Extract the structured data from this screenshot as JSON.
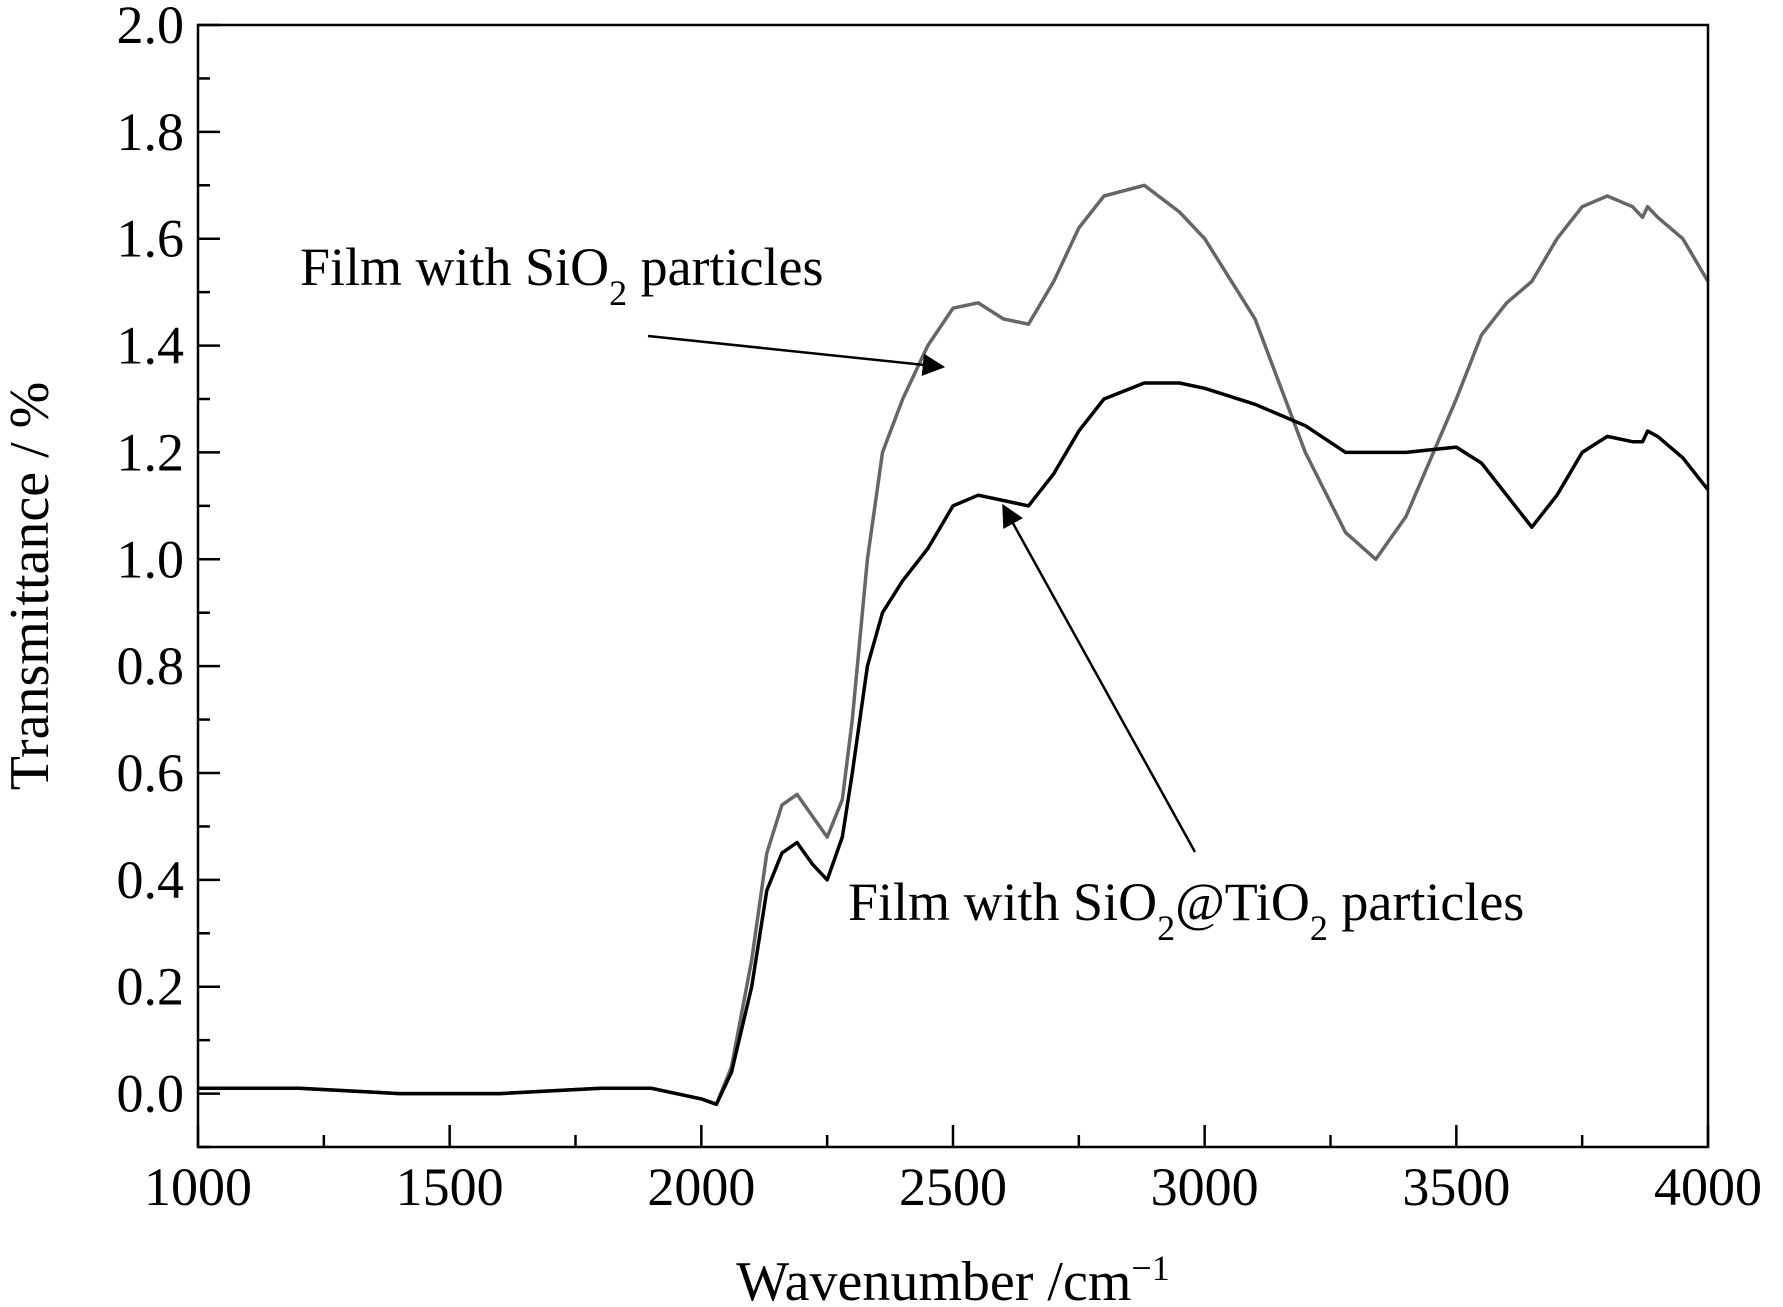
{
  "chart_data": {
    "type": "line",
    "title": "",
    "xlabel": "Wavenumber /cm",
    "xlabel_sup": "−1",
    "ylabel": "Transmittance / %",
    "xlim": [
      1000,
      4000
    ],
    "ylim": [
      -0.1,
      2.0
    ],
    "x_ticks": [
      1000,
      1500,
      2000,
      2500,
      3000,
      3500,
      4000
    ],
    "x_tick_labels": [
      "1000",
      "1500",
      "2000",
      "2500",
      "3000",
      "3500",
      "4000"
    ],
    "y_ticks": [
      0.0,
      0.2,
      0.4,
      0.6,
      0.8,
      1.0,
      1.2,
      1.4,
      1.6,
      1.8,
      2.0
    ],
    "y_tick_labels": [
      "0.0",
      "0.2",
      "0.4",
      "0.6",
      "0.8",
      "1.0",
      "1.2",
      "1.4",
      "1.6",
      "1.8",
      "2.0"
    ],
    "grid": false,
    "legend": "none",
    "series": [
      {
        "color": "#666666",
        "x": [
          1000,
          1200,
          1400,
          1600,
          1800,
          1900,
          1950,
          2000,
          2030,
          2060,
          2100,
          2130,
          2160,
          2190,
          2220,
          2250,
          2280,
          2300,
          2330,
          2360,
          2400,
          2450,
          2500,
          2550,
          2600,
          2650,
          2700,
          2750,
          2800,
          2880,
          2950,
          3000,
          3100,
          3200,
          3280,
          3340,
          3400,
          3500,
          3550,
          3600,
          3650,
          3700,
          3750,
          3800,
          3850,
          3870,
          3880,
          3900,
          3950,
          4000
        ],
        "y": [
          0.01,
          0.01,
          0.0,
          0.0,
          0.01,
          0.01,
          0.0,
          -0.01,
          -0.02,
          0.05,
          0.25,
          0.45,
          0.54,
          0.56,
          0.52,
          0.48,
          0.55,
          0.7,
          1.0,
          1.2,
          1.3,
          1.4,
          1.47,
          1.48,
          1.45,
          1.44,
          1.52,
          1.62,
          1.68,
          1.7,
          1.65,
          1.6,
          1.45,
          1.2,
          1.05,
          1.0,
          1.08,
          1.3,
          1.42,
          1.48,
          1.52,
          1.6,
          1.66,
          1.68,
          1.66,
          1.64,
          1.66,
          1.64,
          1.6,
          1.52
        ],
        "annotation": {
          "prefix": "Film with SiO",
          "sub": "2",
          "suffix": " particles",
          "arrow_to": [
            2480,
            1.36
          ]
        }
      },
      {
        "color": "#000000",
        "x": [
          1000,
          1200,
          1400,
          1600,
          1800,
          1900,
          1950,
          2000,
          2030,
          2060,
          2100,
          2130,
          2160,
          2190,
          2220,
          2250,
          2280,
          2300,
          2330,
          2360,
          2400,
          2450,
          2500,
          2550,
          2600,
          2650,
          2700,
          2750,
          2800,
          2880,
          2950,
          3000,
          3100,
          3200,
          3280,
          3340,
          3400,
          3500,
          3550,
          3600,
          3650,
          3700,
          3750,
          3800,
          3850,
          3870,
          3880,
          3900,
          3950,
          4000
        ],
        "y": [
          0.01,
          0.01,
          0.0,
          0.0,
          0.01,
          0.01,
          0.0,
          -0.01,
          -0.02,
          0.04,
          0.2,
          0.38,
          0.45,
          0.47,
          0.43,
          0.4,
          0.48,
          0.6,
          0.8,
          0.9,
          0.96,
          1.02,
          1.1,
          1.12,
          1.11,
          1.1,
          1.16,
          1.24,
          1.3,
          1.33,
          1.33,
          1.32,
          1.29,
          1.25,
          1.2,
          1.2,
          1.2,
          1.21,
          1.18,
          1.12,
          1.06,
          1.12,
          1.2,
          1.23,
          1.22,
          1.22,
          1.24,
          1.23,
          1.19,
          1.13
        ],
        "annotation": {
          "prefix": "Film with SiO",
          "sub": "2",
          "mid": "@TiO",
          "sub2": "2",
          "suffix": " particles",
          "arrow_to": [
            2600,
            1.1
          ]
        }
      }
    ]
  }
}
